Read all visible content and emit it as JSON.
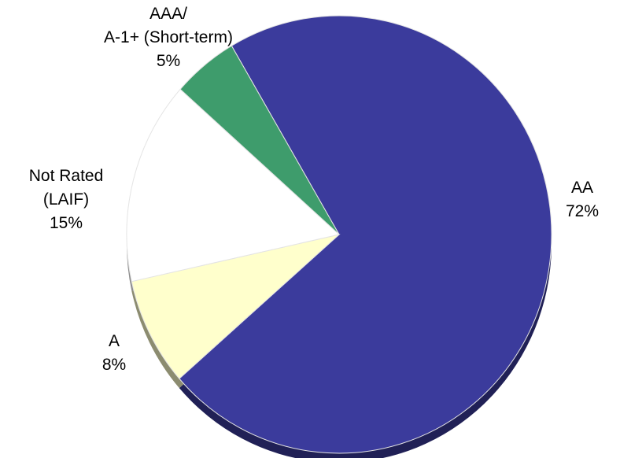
{
  "chart_data": {
    "type": "pie",
    "categories": [
      "AA",
      "A",
      "Not Rated\n(LAIF)",
      "AAA/\nA-1+ (Short-term)"
    ],
    "values": [
      72,
      8,
      15,
      5
    ],
    "value_labels": [
      "72%",
      "8%",
      "15%",
      "5%"
    ],
    "colors": [
      "#3b3b9c",
      "#ffffcc",
      "#ffffff",
      "#3e9c6c"
    ]
  }
}
